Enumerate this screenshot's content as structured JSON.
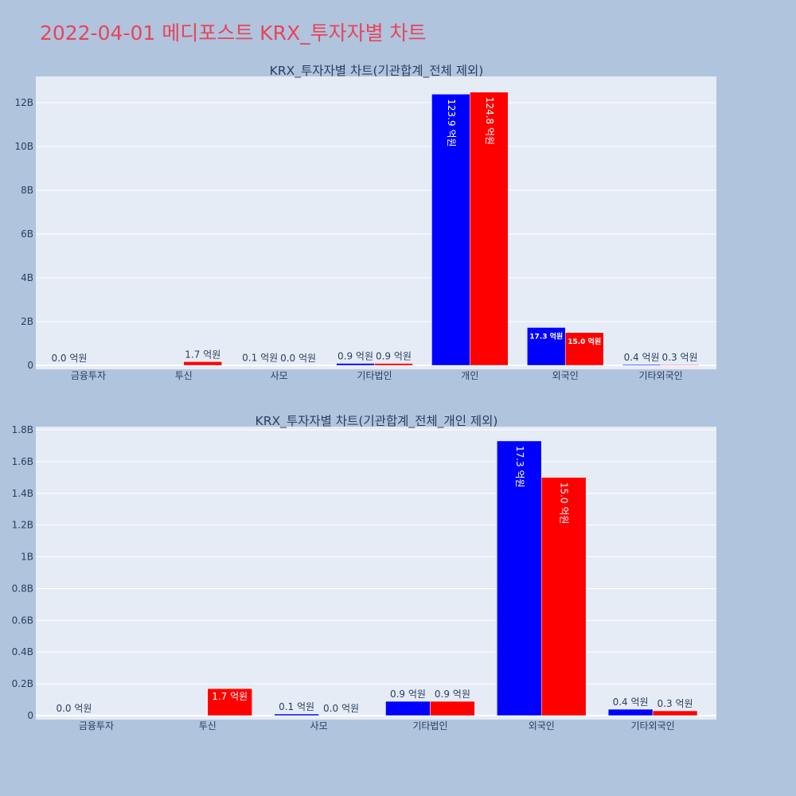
{
  "page": {
    "title": "2022-04-01 메디포스트 KRX_투자자별 차트"
  },
  "colors": {
    "background": "#b0c4de",
    "plot_bg": "#e5ecf6",
    "series_a": "#0000ff",
    "series_b": "#ff0000",
    "title": "#e8445a",
    "text": "#2a3f5f"
  },
  "chart_data": [
    {
      "type": "bar",
      "title": "KRX_투자자별 차트(기관합계_전체 제외)",
      "categories": [
        "금융투자",
        "투신",
        "사모",
        "기타법인",
        "개인",
        "외국인",
        "기타외국인"
      ],
      "ylim": [
        0,
        13200000000
      ],
      "yticks": [
        0,
        2000000000,
        4000000000,
        6000000000,
        8000000000,
        10000000000,
        12000000000
      ],
      "ytick_labels": [
        "0",
        "2B",
        "4B",
        "6B",
        "8B",
        "10B",
        "12B"
      ],
      "grid": true,
      "series": [
        {
          "color": "#0000ff",
          "values": [
            0,
            0,
            10000000,
            90000000,
            12390000000,
            1730000000,
            40000000
          ],
          "labels": [
            "0.0 억원",
            "",
            "0.1 억원",
            "0.9 억원",
            "123.9 억원",
            "17.3 억원",
            "0.4 억원"
          ]
        },
        {
          "color": "#ff0000",
          "values": [
            0,
            170000000,
            0,
            90000000,
            12480000000,
            1500000000,
            30000000
          ],
          "labels": [
            "",
            "1.7 억원",
            "0.0 억원",
            "0.9 억원",
            "124.8 억원",
            "15.0 억원",
            "0.3 억원"
          ]
        }
      ]
    },
    {
      "type": "bar",
      "title": "KRX_투자자별 차트(기관합계_전체_개인 제외)",
      "categories": [
        "금융투자",
        "투신",
        "사모",
        "기타법인",
        "외국인",
        "기타외국인"
      ],
      "ylim": [
        0,
        1820000000
      ],
      "yticks": [
        0,
        200000000,
        400000000,
        600000000,
        800000000,
        1000000000,
        1200000000,
        1400000000,
        1600000000,
        1800000000
      ],
      "ytick_labels": [
        "0",
        "0.2B",
        "0.4B",
        "0.6B",
        "0.8B",
        "1B",
        "1.2B",
        "1.4B",
        "1.6B",
        "1.8B"
      ],
      "grid": true,
      "series": [
        {
          "color": "#0000ff",
          "values": [
            0,
            0,
            10000000,
            90000000,
            1730000000,
            40000000
          ],
          "labels": [
            "0.0 억원",
            "",
            "0.1 억원",
            "0.9 억원",
            "17.3 억원",
            "0.4 억원"
          ]
        },
        {
          "color": "#ff0000",
          "values": [
            0,
            170000000,
            0,
            90000000,
            1500000000,
            30000000
          ],
          "labels": [
            "",
            "1.7 억원",
            "0.0 억원",
            "0.9 억원",
            "15.0 억원",
            "0.3 억원"
          ]
        }
      ]
    }
  ]
}
